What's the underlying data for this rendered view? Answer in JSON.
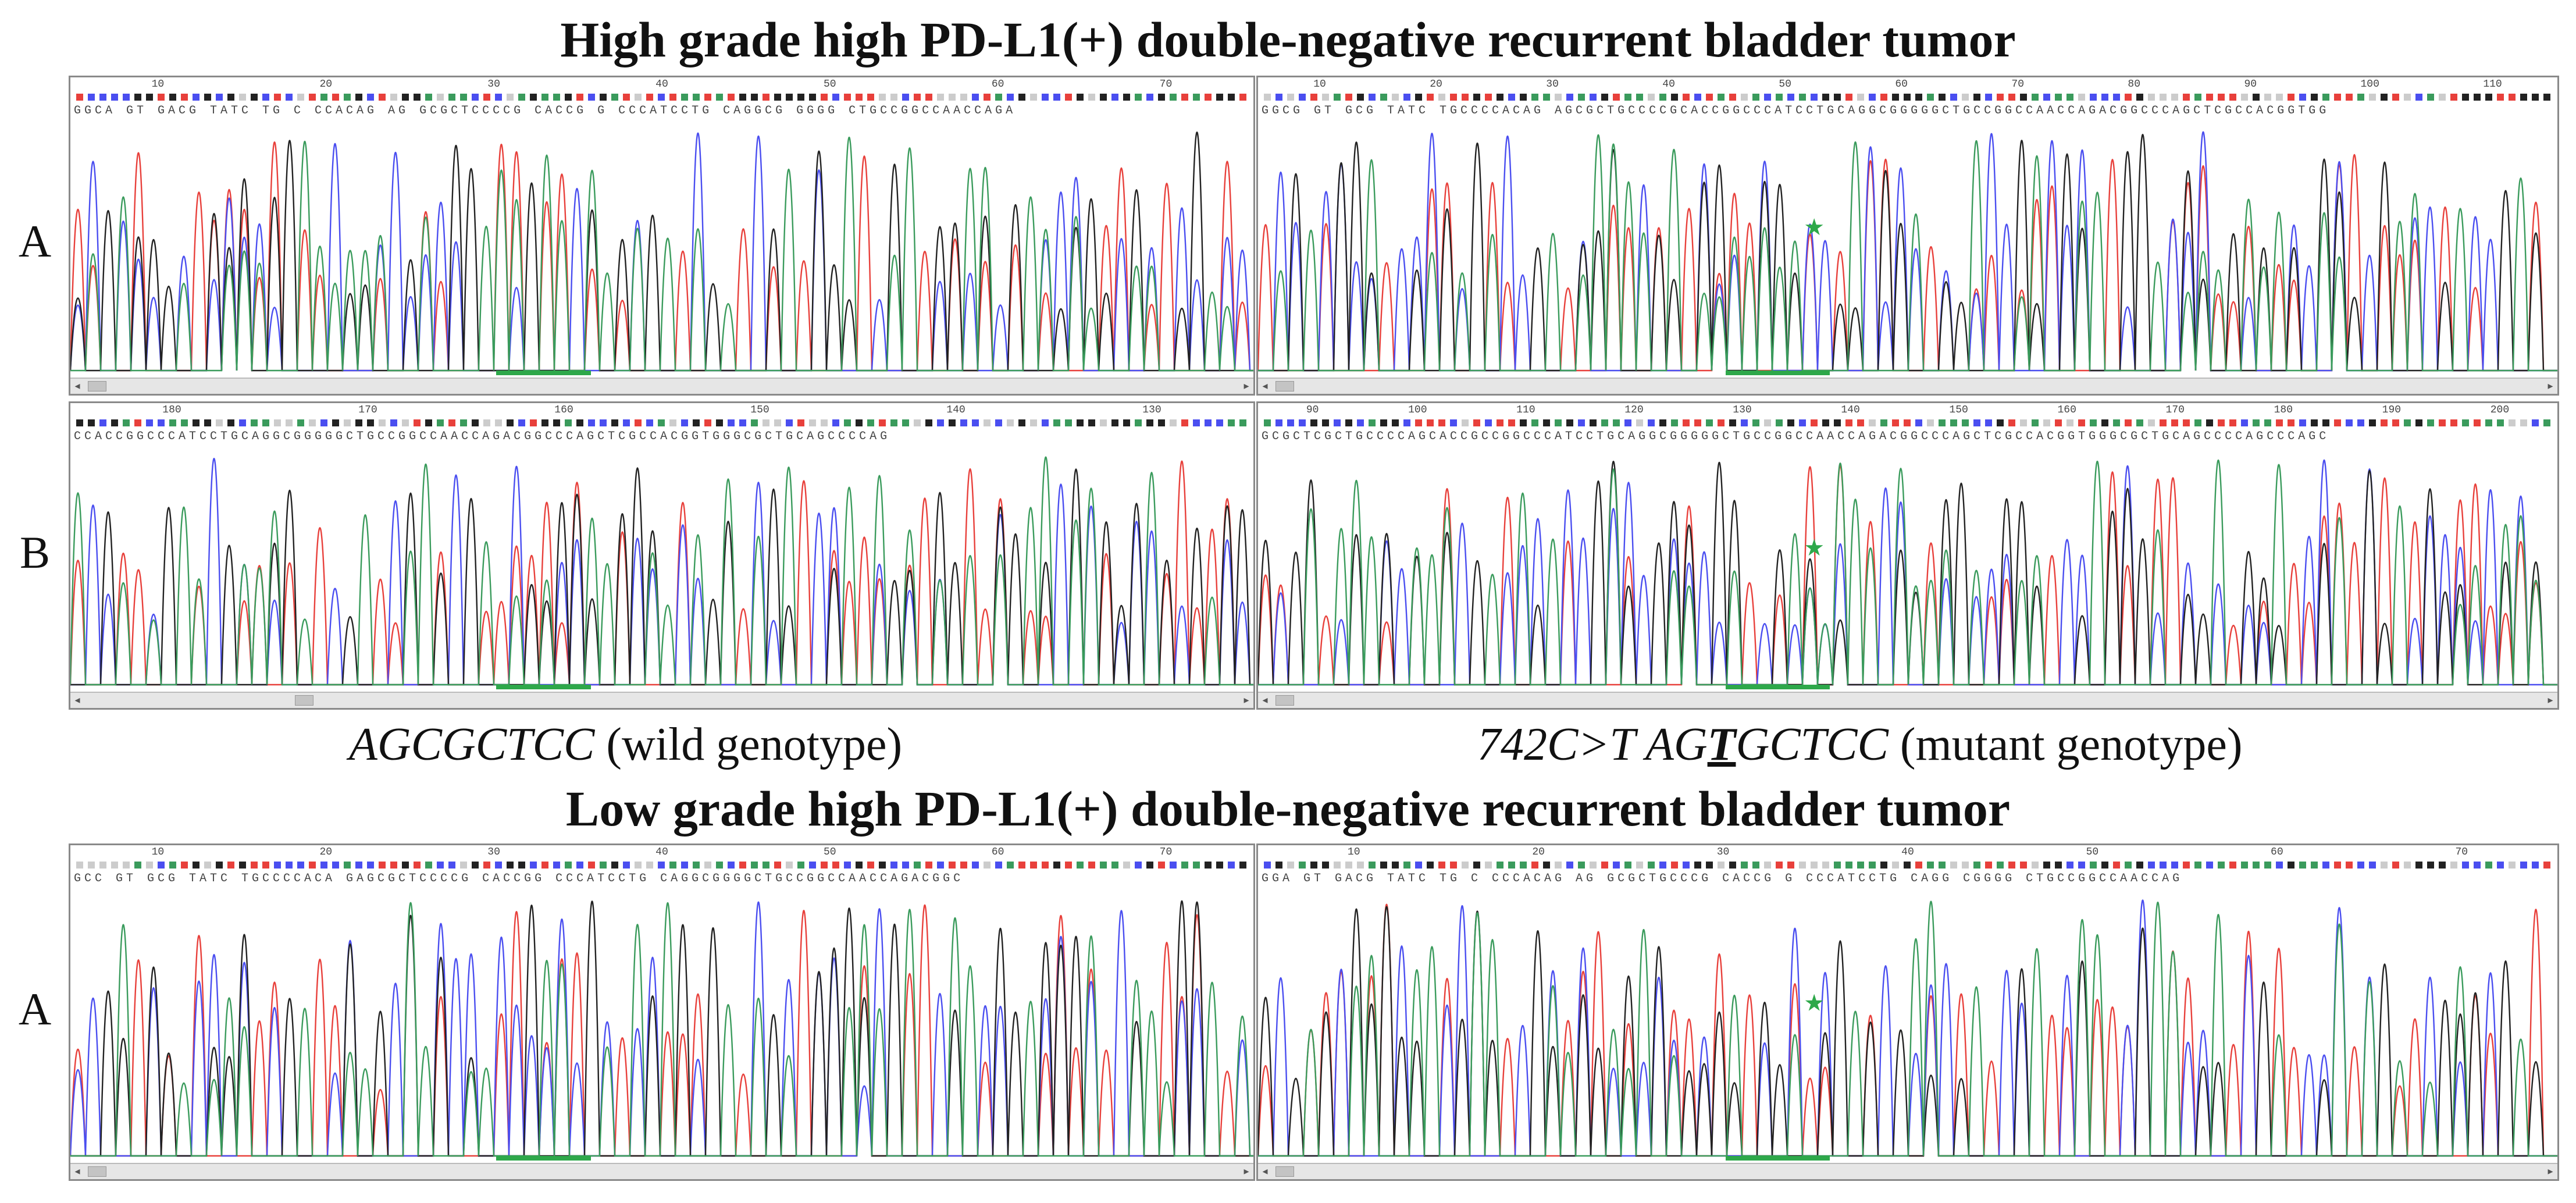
{
  "titles": {
    "top": "High grade high PD-L1(+) double-negative recurrent bladder tumor",
    "bottom": "Low grade high PD-L1(+) double-negative recurrent bladder tumor"
  },
  "row_labels": {
    "top_a": "A",
    "top_b": "B",
    "bottom_a": "A"
  },
  "captions": {
    "wild_seq": "AGCGCTCC",
    "wild_label": " (wild genotype)",
    "mut_prefix": "742C>T AG",
    "mut_base": "T",
    "mut_suffix": "GCTCC",
    "mut_label": " (mutant genotype)"
  },
  "panels": [
    {
      "id": "top-a-left",
      "bases": "GGCA GT GACG TATC TG C CCACAG AG GCGCTCCCCG CACCG G CCCATCCTG CAGGCG GGGG CTGCCGGCCAACCAGA",
      "ticks": "10 20 30 40 50 60 70",
      "mutation_star": false
    },
    {
      "id": "top-a-right",
      "bases": "GGCG GT GCG TATC TGCCCCACAG AGCGCTGCCCCGCACCGGCCCATCCTGCAGGCGGGGGCTGCCGGCCAACCAGACGGCCCAGCTCGCCACGGTGG",
      "ticks": "10 20 30 40 50 60 70 80 90 100 110",
      "mutation_star": true
    },
    {
      "id": "top-b-left",
      "bases": "CCACCGGCCCATCCTGCAGGCGGGGGCTGCCGGCCAACCAGACGGCCCAGCTCGCCACGGTGGGCGCTGCAGCCCCAG",
      "ticks": "180 170 160 150 140 130",
      "mutation_star": false
    },
    {
      "id": "top-b-right",
      "bases": "GCGCTCGCTGCCCCAGCACCGCCGGCCCATCCTGCAGGCGGGGGCTGCCGGCCAACCAGACGGCCCAGCTCGCCACGGTGGGCGCTGCAGCCCCAGCCCAGC",
      "ticks": "90 100 110 120 130 140 150 160 170 180 190 200",
      "mutation_star": true
    },
    {
      "id": "bottom-a-left",
      "bases": "GCC GT GCG TATC TGCCCCACA GAGCGCTCCCCG CACCGG CCCATCCTG CAGGCGGGGCTGCCGGCCAACCAGACGGC",
      "ticks": "10 20 30 40 50 60 70",
      "mutation_star": false
    },
    {
      "id": "bottom-a-right",
      "bases": "GGA GT GACG TATC TG C CCCACAG AG GCGCTGCCCG CACCG G CCCATCCTG CAGG CGGGG CTGCCGGCCAACCAG",
      "ticks": "10 20 30 40 50 60 70",
      "mutation_star": true
    }
  ],
  "trace_colors": {
    "A": "#e8403b",
    "C": "#4a4ef0",
    "G": "#222222",
    "T": "#3a9b5c"
  },
  "highlight_color": "#2ea84a"
}
